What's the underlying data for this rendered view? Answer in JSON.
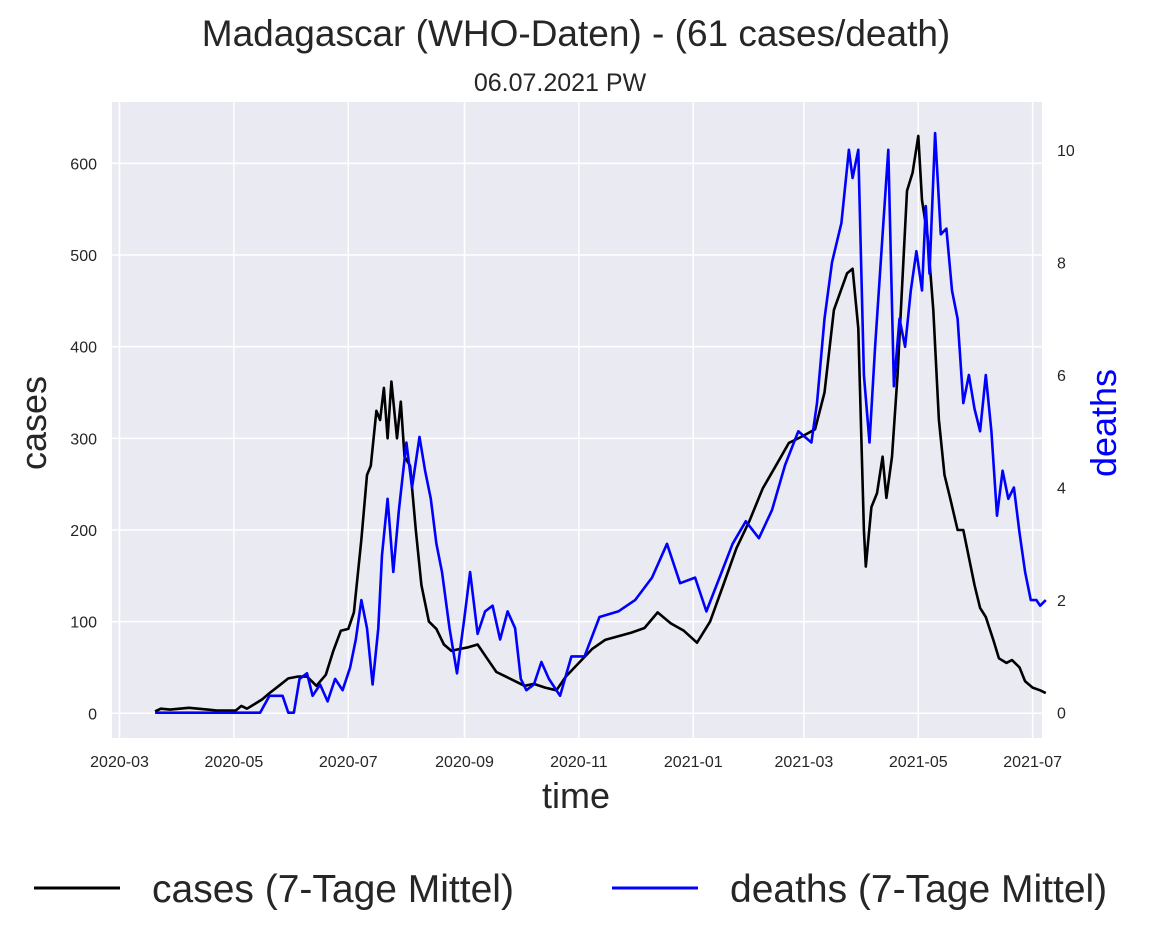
{
  "chart_data": {
    "type": "line",
    "title": "Madagascar (WHO-Daten) - (61 cases/death)",
    "subtitle": "06.07.2021 PW",
    "xlabel": "time",
    "ylabel": "cases",
    "y2label": "deaths",
    "x_ticks": [
      "2020-03",
      "2020-05",
      "2020-07",
      "2020-09",
      "2020-11",
      "2021-01",
      "2021-03",
      "2021-05",
      "2021-07"
    ],
    "y_ticks": [
      0,
      100,
      200,
      300,
      400,
      500,
      600
    ],
    "y2_ticks": [
      0,
      2,
      4,
      6,
      8,
      10
    ],
    "ylim": [
      -27,
      667
    ],
    "y2lim": [
      -0.45,
      10.85
    ],
    "xlim": [
      "2020-02-26",
      "2021-07-06"
    ],
    "grid": true,
    "legend_position": "bottom",
    "colors": {
      "plot_background": "#eaeaf2",
      "grid": "#ffffff",
      "cases": "#000000",
      "deaths": "#0000ff"
    },
    "series": [
      {
        "name": "cases (7-Tage Mittel)",
        "axis": "left",
        "points": [
          [
            "2020-03-20",
            2
          ],
          [
            "2020-03-23",
            5
          ],
          [
            "2020-03-28",
            4
          ],
          [
            "2020-04-02",
            5
          ],
          [
            "2020-04-07",
            6
          ],
          [
            "2020-04-12",
            5
          ],
          [
            "2020-04-17",
            4
          ],
          [
            "2020-04-22",
            3
          ],
          [
            "2020-04-27",
            3
          ],
          [
            "2020-05-02",
            3
          ],
          [
            "2020-05-05",
            8
          ],
          [
            "2020-05-08",
            5
          ],
          [
            "2020-05-12",
            10
          ],
          [
            "2020-05-16",
            15
          ],
          [
            "2020-05-20",
            22
          ],
          [
            "2020-05-25",
            30
          ],
          [
            "2020-05-30",
            38
          ],
          [
            "2020-06-04",
            40
          ],
          [
            "2020-06-09",
            40
          ],
          [
            "2020-06-14",
            30
          ],
          [
            "2020-06-19",
            42
          ],
          [
            "2020-06-23",
            68
          ],
          [
            "2020-06-27",
            90
          ],
          [
            "2020-07-01",
            92
          ],
          [
            "2020-07-04",
            110
          ],
          [
            "2020-07-08",
            190
          ],
          [
            "2020-07-11",
            260
          ],
          [
            "2020-07-13",
            270
          ],
          [
            "2020-07-16",
            330
          ],
          [
            "2020-07-18",
            320
          ],
          [
            "2020-07-20",
            355
          ],
          [
            "2020-07-22",
            300
          ],
          [
            "2020-07-24",
            362
          ],
          [
            "2020-07-27",
            300
          ],
          [
            "2020-07-29",
            340
          ],
          [
            "2020-07-31",
            280
          ],
          [
            "2020-08-03",
            270
          ],
          [
            "2020-08-06",
            200
          ],
          [
            "2020-08-09",
            140
          ],
          [
            "2020-08-13",
            100
          ],
          [
            "2020-08-17",
            92
          ],
          [
            "2020-08-21",
            75
          ],
          [
            "2020-08-25",
            68
          ],
          [
            "2020-08-29",
            70
          ],
          [
            "2020-09-03",
            72
          ],
          [
            "2020-09-08",
            75
          ],
          [
            "2020-09-13",
            60
          ],
          [
            "2020-09-18",
            45
          ],
          [
            "2020-09-23",
            40
          ],
          [
            "2020-09-28",
            35
          ],
          [
            "2020-10-03",
            30
          ],
          [
            "2020-10-08",
            32
          ],
          [
            "2020-10-14",
            28
          ],
          [
            "2020-10-20",
            25
          ],
          [
            "2020-10-25",
            40
          ],
          [
            "2020-11-01",
            55
          ],
          [
            "2020-11-08",
            70
          ],
          [
            "2020-11-15",
            80
          ],
          [
            "2020-11-22",
            84
          ],
          [
            "2020-11-29",
            88
          ],
          [
            "2020-12-06",
            93
          ],
          [
            "2020-12-13",
            110
          ],
          [
            "2020-12-20",
            98
          ],
          [
            "2020-12-27",
            90
          ],
          [
            "2021-01-03",
            77
          ],
          [
            "2021-01-10",
            100
          ],
          [
            "2021-01-17",
            140
          ],
          [
            "2021-01-24",
            180
          ],
          [
            "2021-01-31",
            210
          ],
          [
            "2021-02-07",
            245
          ],
          [
            "2021-02-14",
            270
          ],
          [
            "2021-02-21",
            295
          ],
          [
            "2021-02-28",
            302
          ],
          [
            "2021-03-07",
            310
          ],
          [
            "2021-03-12",
            350
          ],
          [
            "2021-03-17",
            440
          ],
          [
            "2021-03-24",
            480
          ],
          [
            "2021-03-27",
            485
          ],
          [
            "2021-03-30",
            420
          ],
          [
            "2021-04-02",
            200
          ],
          [
            "2021-04-03",
            160
          ],
          [
            "2021-04-06",
            225
          ],
          [
            "2021-04-09",
            240
          ],
          [
            "2021-04-12",
            280
          ],
          [
            "2021-04-14",
            235
          ],
          [
            "2021-04-17",
            280
          ],
          [
            "2021-04-20",
            370
          ],
          [
            "2021-04-25",
            570
          ],
          [
            "2021-04-28",
            590
          ],
          [
            "2021-05-01",
            630
          ],
          [
            "2021-05-03",
            560
          ],
          [
            "2021-05-06",
            520
          ],
          [
            "2021-05-09",
            440
          ],
          [
            "2021-05-12",
            320
          ],
          [
            "2021-05-15",
            260
          ],
          [
            "2021-05-18",
            235
          ],
          [
            "2021-05-22",
            200
          ],
          [
            "2021-05-25",
            200
          ],
          [
            "2021-05-28",
            170
          ],
          [
            "2021-05-31",
            140
          ],
          [
            "2021-06-03",
            115
          ],
          [
            "2021-06-06",
            105
          ],
          [
            "2021-06-10",
            80
          ],
          [
            "2021-06-13",
            60
          ],
          [
            "2021-06-17",
            55
          ],
          [
            "2021-06-20",
            58
          ],
          [
            "2021-06-24",
            50
          ],
          [
            "2021-06-27",
            35
          ],
          [
            "2021-07-01",
            28
          ],
          [
            "2021-07-05",
            25
          ],
          [
            "2021-07-08",
            22
          ]
        ]
      },
      {
        "name": "deaths (7-Tage Mittel)",
        "axis": "right",
        "points": [
          [
            "2020-03-20",
            0
          ],
          [
            "2020-04-05",
            0
          ],
          [
            "2020-04-25",
            0
          ],
          [
            "2020-05-15",
            0
          ],
          [
            "2020-05-20",
            0.3
          ],
          [
            "2020-05-27",
            0.3
          ],
          [
            "2020-05-30",
            0
          ],
          [
            "2020-06-02",
            0
          ],
          [
            "2020-06-05",
            0.6
          ],
          [
            "2020-06-09",
            0.7
          ],
          [
            "2020-06-12",
            0.3
          ],
          [
            "2020-06-16",
            0.5
          ],
          [
            "2020-06-20",
            0.2
          ],
          [
            "2020-06-24",
            0.6
          ],
          [
            "2020-06-28",
            0.4
          ],
          [
            "2020-07-02",
            0.8
          ],
          [
            "2020-07-05",
            1.3
          ],
          [
            "2020-07-08",
            2.0
          ],
          [
            "2020-07-11",
            1.5
          ],
          [
            "2020-07-14",
            0.5
          ],
          [
            "2020-07-17",
            1.5
          ],
          [
            "2020-07-19",
            2.8
          ],
          [
            "2020-07-22",
            3.8
          ],
          [
            "2020-07-25",
            2.5
          ],
          [
            "2020-07-28",
            3.6
          ],
          [
            "2020-08-01",
            4.8
          ],
          [
            "2020-08-04",
            4.0
          ],
          [
            "2020-08-08",
            4.9
          ],
          [
            "2020-08-11",
            4.3
          ],
          [
            "2020-08-14",
            3.8
          ],
          [
            "2020-08-17",
            3.0
          ],
          [
            "2020-08-20",
            2.5
          ],
          [
            "2020-08-24",
            1.5
          ],
          [
            "2020-08-28",
            0.7
          ],
          [
            "2020-09-01",
            1.7
          ],
          [
            "2020-09-04",
            2.5
          ],
          [
            "2020-09-08",
            1.4
          ],
          [
            "2020-09-12",
            1.8
          ],
          [
            "2020-09-16",
            1.9
          ],
          [
            "2020-09-20",
            1.3
          ],
          [
            "2020-09-24",
            1.8
          ],
          [
            "2020-09-28",
            1.5
          ],
          [
            "2020-10-01",
            0.6
          ],
          [
            "2020-10-04",
            0.4
          ],
          [
            "2020-10-08",
            0.5
          ],
          [
            "2020-10-12",
            0.9
          ],
          [
            "2020-10-16",
            0.6
          ],
          [
            "2020-10-22",
            0.3
          ],
          [
            "2020-10-28",
            1.0
          ],
          [
            "2020-11-04",
            1.0
          ],
          [
            "2020-11-12",
            1.7
          ],
          [
            "2020-11-22",
            1.8
          ],
          [
            "2020-12-01",
            2.0
          ],
          [
            "2020-12-10",
            2.4
          ],
          [
            "2020-12-18",
            3.0
          ],
          [
            "2020-12-25",
            2.3
          ],
          [
            "2021-01-02",
            2.4
          ],
          [
            "2021-01-08",
            1.8
          ],
          [
            "2021-01-15",
            2.4
          ],
          [
            "2021-01-22",
            3.0
          ],
          [
            "2021-01-29",
            3.4
          ],
          [
            "2021-02-05",
            3.1
          ],
          [
            "2021-02-12",
            3.6
          ],
          [
            "2021-02-19",
            4.4
          ],
          [
            "2021-02-26",
            5.0
          ],
          [
            "2021-03-05",
            4.8
          ],
          [
            "2021-03-08",
            5.5
          ],
          [
            "2021-03-12",
            7.0
          ],
          [
            "2021-03-16",
            8.0
          ],
          [
            "2021-03-21",
            8.7
          ],
          [
            "2021-03-25",
            10.0
          ],
          [
            "2021-03-27",
            9.5
          ],
          [
            "2021-03-30",
            10.0
          ],
          [
            "2021-04-02",
            6.0
          ],
          [
            "2021-04-05",
            4.8
          ],
          [
            "2021-04-08",
            6.5
          ],
          [
            "2021-04-12",
            8.5
          ],
          [
            "2021-04-15",
            10.0
          ],
          [
            "2021-04-18",
            5.8
          ],
          [
            "2021-04-21",
            7.0
          ],
          [
            "2021-04-24",
            6.5
          ],
          [
            "2021-04-27",
            7.5
          ],
          [
            "2021-04-30",
            8.2
          ],
          [
            "2021-05-03",
            7.5
          ],
          [
            "2021-05-05",
            9.0
          ],
          [
            "2021-05-07",
            7.8
          ],
          [
            "2021-05-10",
            10.3
          ],
          [
            "2021-05-13",
            8.5
          ],
          [
            "2021-05-16",
            8.6
          ],
          [
            "2021-05-19",
            7.5
          ],
          [
            "2021-05-22",
            7.0
          ],
          [
            "2021-05-25",
            5.5
          ],
          [
            "2021-05-28",
            6.0
          ],
          [
            "2021-05-31",
            5.4
          ],
          [
            "2021-06-03",
            5.0
          ],
          [
            "2021-06-06",
            6.0
          ],
          [
            "2021-06-09",
            5.0
          ],
          [
            "2021-06-12",
            3.5
          ],
          [
            "2021-06-15",
            4.3
          ],
          [
            "2021-06-18",
            3.8
          ],
          [
            "2021-06-21",
            4.0
          ],
          [
            "2021-06-24",
            3.2
          ],
          [
            "2021-06-27",
            2.5
          ],
          [
            "2021-06-30",
            2.0
          ],
          [
            "2021-07-03",
            2.0
          ],
          [
            "2021-07-05",
            1.9
          ],
          [
            "2021-07-08",
            2.0
          ]
        ]
      }
    ]
  }
}
